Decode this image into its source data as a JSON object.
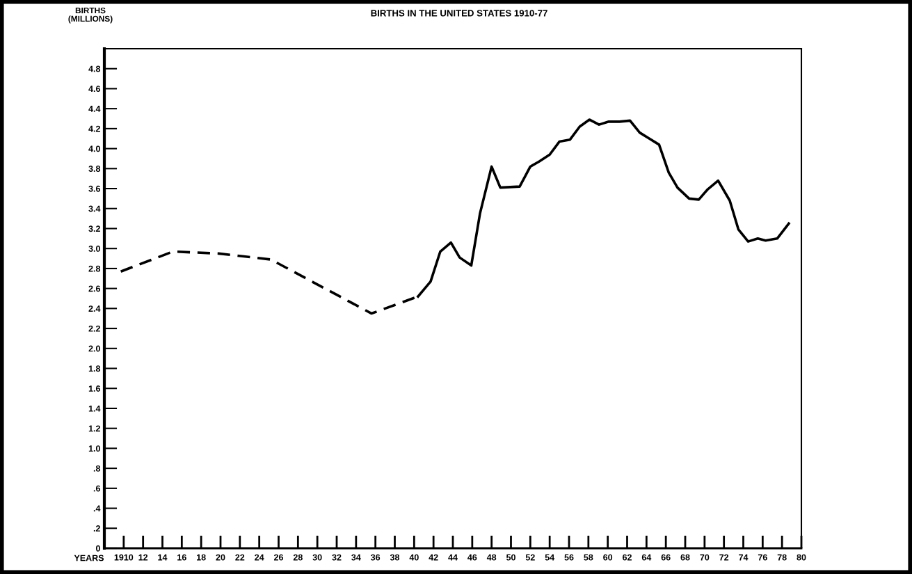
{
  "chart_data": {
    "type": "line",
    "title": "BIRTHS IN THE UNITED STATES 1910-77",
    "ylabel": "BIRTHS\n(MILLIONS)",
    "xlabel": "YEARS",
    "series": [
      {
        "color": "#000000",
        "line_style": "dashed",
        "x": [
          1909.7,
          1915.1,
          1919.8,
          1925.2,
          1935.6,
          1940.4
        ],
        "values": [
          2.77,
          2.97,
          2.95,
          2.89,
          2.35,
          2.52
        ]
      },
      {
        "color": "#000000",
        "line_style": "solid",
        "x": [
          1940.4,
          1941.7,
          1942.7,
          1943.8,
          1944.7,
          1945.9,
          1946.8,
          1948.0,
          1948.9,
          1950.9,
          1952.0,
          1952.9,
          1954.0,
          1955.0,
          1956.1,
          1957.1,
          1958.1,
          1959.1,
          1960.1,
          1961.2,
          1962.3,
          1963.3,
          1964.3,
          1965.3,
          1966.3,
          1967.2,
          1968.4,
          1969.4,
          1970.3,
          1971.4,
          1972.6,
          1973.5,
          1974.5,
          1975.5,
          1976.3,
          1977.5,
          1978.7
        ],
        "values": [
          2.52,
          2.67,
          2.97,
          3.06,
          2.91,
          2.83,
          3.35,
          3.82,
          3.61,
          3.62,
          3.82,
          3.87,
          3.94,
          4.07,
          4.09,
          4.22,
          4.29,
          4.24,
          4.27,
          4.27,
          4.28,
          4.16,
          4.1,
          4.04,
          3.76,
          3.61,
          3.5,
          3.49,
          3.59,
          3.68,
          3.48,
          3.19,
          3.07,
          3.1,
          3.08,
          3.1,
          3.25
        ]
      }
    ],
    "xlim": [
      1908,
      1980
    ],
    "xticks": [
      {
        "value": 1910,
        "label": "1910"
      },
      {
        "value": 1912,
        "label": "12"
      },
      {
        "value": 1914,
        "label": "14"
      },
      {
        "value": 1916,
        "label": "16"
      },
      {
        "value": 1918,
        "label": "18"
      },
      {
        "value": 1920,
        "label": "20"
      },
      {
        "value": 1922,
        "label": "22"
      },
      {
        "value": 1924,
        "label": "24"
      },
      {
        "value": 1926,
        "label": "26"
      },
      {
        "value": 1928,
        "label": "28"
      },
      {
        "value": 1930,
        "label": "30"
      },
      {
        "value": 1932,
        "label": "32"
      },
      {
        "value": 1934,
        "label": "34"
      },
      {
        "value": 1936,
        "label": "36"
      },
      {
        "value": 1938,
        "label": "38"
      },
      {
        "value": 1940,
        "label": "40"
      },
      {
        "value": 1942,
        "label": "42"
      },
      {
        "value": 1944,
        "label": "44"
      },
      {
        "value": 1946,
        "label": "46"
      },
      {
        "value": 1948,
        "label": "48"
      },
      {
        "value": 1950,
        "label": "50"
      },
      {
        "value": 1952,
        "label": "52"
      },
      {
        "value": 1954,
        "label": "54"
      },
      {
        "value": 1956,
        "label": "56"
      },
      {
        "value": 1958,
        "label": "58"
      },
      {
        "value": 1960,
        "label": "60"
      },
      {
        "value": 1962,
        "label": "62"
      },
      {
        "value": 1964,
        "label": "64"
      },
      {
        "value": 1966,
        "label": "66"
      },
      {
        "value": 1968,
        "label": "68"
      },
      {
        "value": 1970,
        "label": "70"
      },
      {
        "value": 1972,
        "label": "72"
      },
      {
        "value": 1974,
        "label": "74"
      },
      {
        "value": 1976,
        "label": "76"
      },
      {
        "value": 1978,
        "label": "78"
      },
      {
        "value": 1980,
        "label": "80"
      }
    ],
    "ylim": [
      0,
      5.0
    ],
    "yticks": [
      0,
      {
        "value": 0.2,
        "label": ".2"
      },
      {
        "value": 0.4,
        "label": ".4"
      },
      {
        "value": 0.6,
        "label": ".6"
      },
      {
        "value": 0.8,
        "label": ".8"
      },
      {
        "value": 1.0,
        "label": "1.0"
      },
      1.2,
      1.4,
      1.6,
      1.8,
      {
        "value": 2.0,
        "label": "2.0"
      },
      2.2,
      2.4,
      2.6,
      2.8,
      {
        "value": 3.0,
        "label": "3.0"
      },
      3.2,
      3.4,
      3.6,
      3.8,
      {
        "value": 4.0,
        "label": "4.0"
      },
      4.2,
      4.4,
      4.6,
      4.8
    ],
    "grid": false,
    "legend": false,
    "marker": "none"
  }
}
